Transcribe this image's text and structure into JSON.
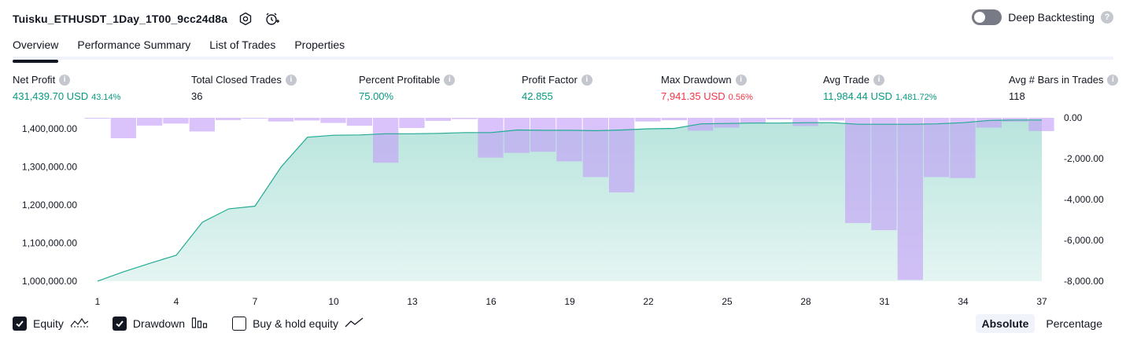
{
  "header": {
    "strategy_name": "Tuisku_ETHUSDT_1Day_1T00_9cc24d8a",
    "icons": [
      "settings-icon",
      "add-alert-icon"
    ]
  },
  "deep_backtesting": {
    "label": "Deep Backtesting",
    "enabled": false
  },
  "tabs": [
    {
      "label": "Overview",
      "active": true
    },
    {
      "label": "Performance Summary",
      "active": false
    },
    {
      "label": "List of Trades",
      "active": false
    },
    {
      "label": "Properties",
      "active": false
    }
  ],
  "stats": {
    "net_profit": {
      "label": "Net Profit",
      "value": "431,439.70 USD",
      "sub": "43.14%"
    },
    "total_closed_trades": {
      "label": "Total Closed Trades",
      "value": "36"
    },
    "percent_profitable": {
      "label": "Percent Profitable",
      "value": "75.00%"
    },
    "profit_factor": {
      "label": "Profit Factor",
      "value": "42.855"
    },
    "max_drawdown": {
      "label": "Max Drawdown",
      "value": "7,941.35 USD",
      "sub": "0.56%"
    },
    "avg_trade": {
      "label": "Avg Trade",
      "value": "11,984.44 USD",
      "sub": "1,481.72%"
    },
    "avg_bars": {
      "label": "Avg # Bars in Trades",
      "value": "118"
    }
  },
  "chart_data": {
    "type": "area",
    "x_ticks": [
      "1",
      "4",
      "7",
      "10",
      "13",
      "16",
      "19",
      "22",
      "25",
      "28",
      "31",
      "34",
      "37"
    ],
    "left_axis": {
      "ticks": [
        "1,400,000.00",
        "1,300,000.00",
        "1,200,000.00",
        "1,100,000.00",
        "1,000,000.00"
      ],
      "ylim": [
        1000000,
        1400000
      ]
    },
    "right_axis": {
      "ticks": [
        "0.00",
        "-2,000.00",
        "-4,000.00",
        "-6,000.00",
        "-8,000.00"
      ],
      "ylim": [
        -8000,
        0
      ]
    },
    "equity": {
      "x": [
        1,
        2,
        3,
        4,
        5,
        6,
        7,
        8,
        9,
        10,
        11,
        12,
        13,
        14,
        15,
        16,
        17,
        18,
        19,
        20,
        21,
        22,
        23,
        24,
        25,
        26,
        27,
        28,
        29,
        30,
        31,
        32,
        33,
        34,
        35,
        36,
        37
      ],
      "values": [
        1000000,
        1025000,
        1047000,
        1068000,
        1155000,
        1190000,
        1197000,
        1300000,
        1378000,
        1383000,
        1384000,
        1387000,
        1387000,
        1388000,
        1390000,
        1390000,
        1397000,
        1396000,
        1396000,
        1395000,
        1397000,
        1400000,
        1401000,
        1413000,
        1414000,
        1415000,
        1415000,
        1416000,
        1416000,
        1412000,
        1412000,
        1412000,
        1413000,
        1416000,
        1422000,
        1423000,
        1423000
      ]
    },
    "drawdown": {
      "x": [
        1,
        2,
        3,
        4,
        5,
        6,
        7,
        8,
        9,
        10,
        11,
        12,
        13,
        14,
        15,
        16,
        17,
        18,
        19,
        20,
        21,
        22,
        23,
        24,
        25,
        26,
        27,
        28,
        29,
        30,
        31,
        32,
        33,
        34,
        35,
        36,
        37
      ],
      "values": [
        -20,
        -1000,
        -380,
        -280,
        -670,
        -110,
        -20,
        -180,
        -130,
        -250,
        -390,
        -2200,
        -500,
        -150,
        -60,
        -1950,
        -1720,
        -1660,
        -2130,
        -2900,
        -3650,
        -180,
        -120,
        -630,
        -480,
        -250,
        -80,
        -400,
        -130,
        -5150,
        -5500,
        -7940,
        -2900,
        -2950,
        -480,
        -190,
        -650
      ]
    },
    "colors": {
      "equity_line": "#22ab94",
      "equity_fill": "#22ab94",
      "drawdown_bar": "#c49ef7"
    }
  },
  "legend": {
    "equity": {
      "label": "Equity",
      "checked": true
    },
    "drawdown": {
      "label": "Drawdown",
      "checked": true
    },
    "buy_hold": {
      "label": "Buy & hold equity",
      "checked": false
    }
  },
  "mode": {
    "absolute": "Absolute",
    "percentage": "Percentage",
    "selected": "Absolute"
  }
}
